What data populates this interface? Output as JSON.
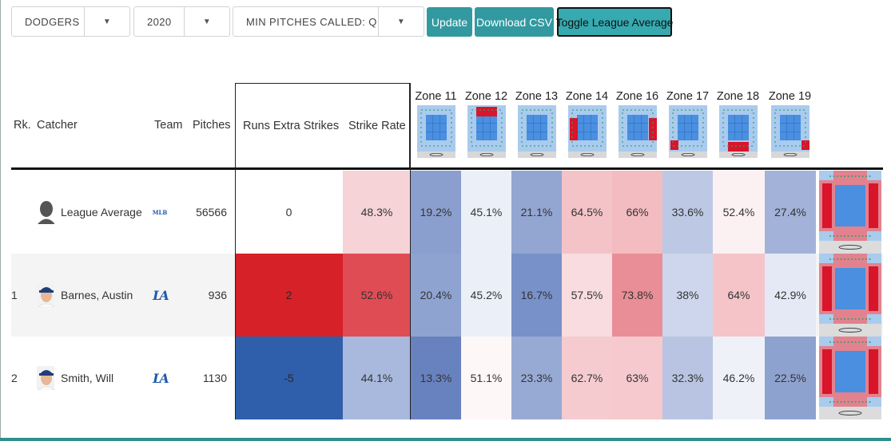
{
  "toolbar": {
    "team_select": "DODGERS",
    "year_select": "2020",
    "min_pitches_select": "MIN PITCHES CALLED: Q",
    "update_label": "Update",
    "download_label": "Download CSV",
    "toggle_label": "Toggle League Average"
  },
  "columns": {
    "rank": "Rk.",
    "catcher": "Catcher",
    "team": "Team",
    "pitches": "Pitches",
    "runs": "Runs Extra Strikes",
    "strike_rate": "Strike Rate",
    "zones": [
      "Zone 11",
      "Zone 12",
      "Zone 13",
      "Zone 14",
      "Zone 16",
      "Zone 17",
      "Zone 18",
      "Zone 19"
    ]
  },
  "rows": [
    {
      "rank": "",
      "catcher": "League Average",
      "team": "MLB",
      "pitches": "56566",
      "runs": "0",
      "strike_rate": "48.3%",
      "zones": [
        "19.2%",
        "45.1%",
        "21.1%",
        "64.5%",
        "66%",
        "33.6%",
        "52.4%",
        "27.4%"
      ]
    },
    {
      "rank": "1",
      "catcher": "Barnes, Austin",
      "team": "LA",
      "pitches": "936",
      "runs": "2",
      "strike_rate": "52.6%",
      "zones": [
        "20.4%",
        "45.2%",
        "16.7%",
        "57.5%",
        "73.8%",
        "38%",
        "64%",
        "42.9%"
      ]
    },
    {
      "rank": "2",
      "catcher": "Smith, Will",
      "team": "LA",
      "pitches": "1130",
      "runs": "-5",
      "strike_rate": "44.1%",
      "zones": [
        "13.3%",
        "51.1%",
        "23.3%",
        "62.7%",
        "63%",
        "32.3%",
        "46.2%",
        "22.5%"
      ]
    }
  ],
  "colors": {
    "accent_button": "#3399a0",
    "row_stripe": "#f4f4f4",
    "rows": [
      {
        "runs_bg": "#ffffff",
        "strike_bg": "#f6d3d7",
        "zones_bg": [
          "#8b9fcf",
          "#ebeff8",
          "#93a6d2",
          "#f4c3c8",
          "#f3bcc1",
          "#bdc8e4",
          "#fcf1f2",
          "#a2b2d9"
        ]
      },
      {
        "runs_bg": "#d62128",
        "strike_bg": "#e04c54",
        "zones_bg": [
          "#8fa3d1",
          "#ebeff8",
          "#7891c8",
          "#f8dcdf",
          "#e98e96",
          "#cdd6ec",
          "#f4c4c9",
          "#e4e9f5"
        ]
      },
      {
        "runs_bg": "#2f5eab",
        "strike_bg": "#a9b9dd",
        "zones_bg": [
          "#6882c0",
          "#fdf7f7",
          "#97aad4",
          "#f5cbd0",
          "#f5c9cd",
          "#b8c4e2",
          "#eef1f8",
          "#8ea2d0"
        ]
      }
    ]
  },
  "icons": {
    "dropdown": "caret-down-icon",
    "avatar_league": "silhouette-icon",
    "avatar_player": "player-headshot-icon"
  }
}
